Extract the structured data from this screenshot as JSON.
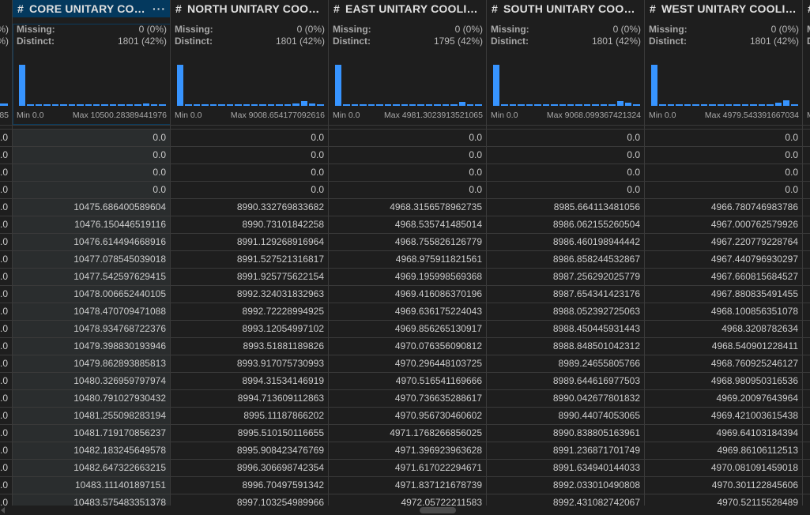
{
  "labels": {
    "missing": "Missing:",
    "distinct": "Distinct:",
    "hash": "#",
    "more": "···"
  },
  "left_partial": {
    "missing_tail": "%)",
    "distinct_tail": "%)",
    "max_tail": "85",
    "value": ".0"
  },
  "right_partial": {
    "missing": "Missing:",
    "distinct": "Distinct:",
    "min": "Min"
  },
  "columns": [
    {
      "title": "CORE UNITARY COO...",
      "selected": true,
      "missing": "0 (0%)",
      "distinct": "1801 (42%)",
      "min": "Min 0.0",
      "max": "Max 10500.28389441976",
      "histogram": [
        100,
        3,
        3,
        3,
        3,
        3,
        3,
        3,
        3,
        3,
        3,
        3,
        3,
        3,
        3,
        6,
        3,
        3
      ],
      "values": [
        "0.0",
        "0.0",
        "0.0",
        "0.0",
        "10475.686400589604",
        "10476.150446519116",
        "10476.614494668916",
        "10477.078545039018",
        "10477.542597629415",
        "10478.006652440105",
        "10478.470709471088",
        "10478.934768722376",
        "10479.398830193946",
        "10479.862893885813",
        "10480.326959797974",
        "10480.791027930432",
        "10481.255098283194",
        "10481.719170856237",
        "10482.183245649578",
        "10482.647322663215",
        "10483.111401897151",
        "10483.575483351378"
      ]
    },
    {
      "title": "NORTH UNITARY COOLI...",
      "selected": false,
      "missing": "0 (0%)",
      "distinct": "1801 (42%)",
      "min": "Min 0.0",
      "max": "Max 9008.654177092616",
      "histogram": [
        100,
        3,
        3,
        3,
        3,
        3,
        3,
        3,
        3,
        3,
        3,
        3,
        3,
        3,
        5,
        11,
        5,
        3
      ],
      "values": [
        "0.0",
        "0.0",
        "0.0",
        "0.0",
        "8990.332769833682",
        "8990.73101842258",
        "8991.129268916964",
        "8991.527521316817",
        "8991.925775622154",
        "8992.324031832963",
        "8992.72228994925",
        "8993.12054997102",
        "8993.51881189826",
        "8993.917075730993",
        "8994.31534146919",
        "8994.713609112863",
        "8995.11187866202",
        "8995.510150116655",
        "8995.908423476769",
        "8996.306698742354",
        "8996.70497591342",
        "8997.103254989966"
      ]
    },
    {
      "title": "EAST UNITARY COOLIN...",
      "selected": false,
      "missing": "0 (0%)",
      "distinct": "1795 (42%)",
      "min": "Min 0.0",
      "max": "Max 4981.3023913521065",
      "histogram": [
        100,
        3,
        3,
        3,
        3,
        3,
        3,
        3,
        3,
        3,
        3,
        3,
        3,
        3,
        3,
        10,
        3,
        3
      ],
      "values": [
        "0.0",
        "0.0",
        "0.0",
        "0.0",
        "4968.3156578962735",
        "4968.535741485014",
        "4968.755826126779",
        "4968.975911821561",
        "4969.195998569368",
        "4969.416086370196",
        "4969.636175224043",
        "4969.856265130917",
        "4970.076356090812",
        "4970.296448103725",
        "4970.516541169666",
        "4970.736635288617",
        "4970.956730460602",
        "4971.1768266856025",
        "4971.396923963628",
        "4971.617022294671",
        "4971.837121678739",
        "4972.05722211583"
      ]
    },
    {
      "title": "SOUTH UNITARY COOLI...",
      "selected": false,
      "missing": "0 (0%)",
      "distinct": "1801 (42%)",
      "min": "Min 0.0",
      "max": "Max 9068.099367421324",
      "histogram": [
        100,
        3,
        3,
        3,
        3,
        3,
        3,
        3,
        3,
        3,
        3,
        3,
        3,
        3,
        3,
        12,
        8,
        3
      ],
      "values": [
        "0.0",
        "0.0",
        "0.0",
        "0.0",
        "8985.664113481056",
        "8986.062155260504",
        "8986.460198944442",
        "8986.858244532867",
        "8987.256292025779",
        "8987.654341423176",
        "8988.052392725063",
        "8988.450445931443",
        "8988.848501042312",
        "8989.24655805766",
        "8989.644616977503",
        "8990.042677801832",
        "8990.44074053065",
        "8990.838805163961",
        "8991.236871701749",
        "8991.634940144033",
        "8992.033010490808",
        "8992.431082742067"
      ]
    },
    {
      "title": "WEST UNITARY COOLIN...",
      "selected": false,
      "missing": "0 (0%)",
      "distinct": "1801 (42%)",
      "min": "Min 0.0",
      "max": "Max 4979.543391667034",
      "histogram": [
        100,
        3,
        3,
        3,
        3,
        3,
        3,
        3,
        3,
        3,
        3,
        3,
        3,
        3,
        3,
        8,
        14,
        3
      ],
      "values": [
        "0.0",
        "0.0",
        "0.0",
        "0.0",
        "4966.780746983786",
        "4967.000762579926",
        "4967.220779228764",
        "4967.440796930297",
        "4967.660815684527",
        "4967.880835491455",
        "4968.100856351078",
        "4968.3208782634",
        "4968.540901228411",
        "4968.760925246127",
        "4968.980950316536",
        "4969.20097643964",
        "4969.421003615438",
        "4969.64103184394",
        "4969.86106112513",
        "4970.081091459018",
        "4970.301122845606",
        "4970.52115528489"
      ]
    }
  ],
  "colors": {
    "accent": "#3794ff",
    "selected_header": "#04395e",
    "background": "#1e1e1e"
  }
}
